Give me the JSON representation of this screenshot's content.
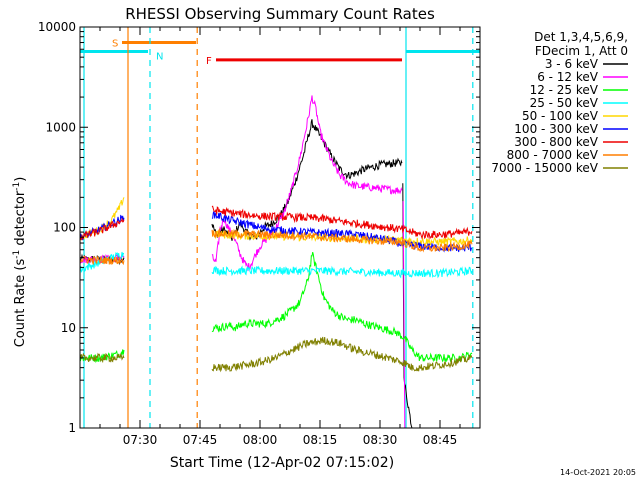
{
  "chart_data": {
    "type": "line",
    "title": "RHESSI Observing Summary Count Rates",
    "xlabel": "Start Time (12-Apr-02 07:15:02)",
    "ylabel_main": "Count Rate (s",
    "ylabel_sup1": "-1",
    "ylabel_mid": " detector",
    "ylabel_sup2": "-1",
    "ylabel_end": ")",
    "yscale": "log",
    "ylim": [
      1,
      10000
    ],
    "xlim": [
      "07:15",
      "08:55"
    ],
    "xlim_minutes": [
      435,
      535
    ],
    "x_ticks": [
      "07:30",
      "07:45",
      "08:00",
      "08:15",
      "08:30",
      "08:45"
    ],
    "x_tick_minutes": [
      450,
      465,
      480,
      495,
      510,
      525
    ],
    "y_ticks": [
      "1",
      "10",
      "100",
      "1000",
      "10000"
    ],
    "y_tick_values": [
      1,
      10,
      100,
      1000,
      10000
    ],
    "legend_header": [
      "Det 1,3,4,5,6,9,",
      "FDecim 1, Att 0"
    ],
    "legend_placement": "right",
    "timestamp": "14-Oct-2021 20:05",
    "flags": [
      {
        "label": "S",
        "color": "#ff7f00",
        "start": 445.5,
        "end": 464.0,
        "value": 7000
      },
      {
        "label": "N",
        "color": "#00e5ee",
        "start": 435.0,
        "end": 452.0,
        "value": 5700
      },
      {
        "label": "N",
        "color": "#00e5ee",
        "start": 516.5,
        "end": 535.0,
        "value": 5700
      },
      {
        "label": "F",
        "color": "#ee0000",
        "start": 469.0,
        "end": 515.5,
        "value": 4700
      }
    ],
    "flag_labels": [
      {
        "text": "S",
        "color": "#ff7f00",
        "x": 443.0,
        "y": 7000
      },
      {
        "text": "N",
        "color": "#00e5ee",
        "x": 454.0,
        "y": 5200
      },
      {
        "text": "F",
        "color": "#ee0000",
        "x": 466.5,
        "y": 4700
      }
    ],
    "vlines": [
      {
        "x": 436.0,
        "color": "#00e5ee",
        "dash": false
      },
      {
        "x": 447.0,
        "color": "#ff7f00",
        "dash": false
      },
      {
        "x": 452.5,
        "color": "#00e5ee",
        "dash": true
      },
      {
        "x": 464.3,
        "color": "#ff7f00",
        "dash": true
      },
      {
        "x": 516.5,
        "color": "#00e5ee",
        "dash": false
      },
      {
        "x": 533.2,
        "color": "#00e5ee",
        "dash": true
      }
    ],
    "series": [
      {
        "name": "3 - 6 keV",
        "color": "#000000",
        "segments": [
          [
            [
              435,
              48
            ],
            [
              440,
              48
            ],
            [
              445,
              48
            ],
            [
              446,
              50
            ]
          ],
          [
            [
              468,
              110
            ],
            [
              469,
              85
            ],
            [
              471,
              95
            ],
            [
              473,
              78
            ],
            [
              475,
              110
            ],
            [
              477,
              85
            ],
            [
              479,
              80
            ],
            [
              481,
              100
            ],
            [
              483,
              110
            ],
            [
              485,
              130
            ],
            [
              487,
              180
            ],
            [
              489,
              300
            ],
            [
              491,
              550
            ],
            [
              492,
              800
            ],
            [
              493,
              1100
            ],
            [
              494,
              950
            ],
            [
              496,
              700
            ],
            [
              498,
              500
            ],
            [
              500,
              380
            ],
            [
              502,
              330
            ],
            [
              504,
              350
            ],
            [
              506,
              380
            ],
            [
              508,
              400
            ],
            [
              510,
              420
            ],
            [
              512,
              430
            ],
            [
              514,
              440
            ],
            [
              515.5,
              440
            ]
          ],
          [
            [
              515.7,
              300
            ],
            [
              516,
              3
            ],
            [
              518,
              1.0
            ]
          ]
        ]
      },
      {
        "name": "6 - 12 keV",
        "color": "#ff00ff",
        "segments": [
          [
            [
              435,
              48
            ],
            [
              440,
              48
            ],
            [
              445,
              50
            ],
            [
              446,
              52
            ]
          ],
          [
            [
              468,
              50
            ],
            [
              469,
              45
            ],
            [
              470,
              95
            ],
            [
              471,
              125
            ],
            [
              472,
              100
            ],
            [
              473,
              85
            ],
            [
              474,
              70
            ],
            [
              475,
              55
            ],
            [
              476,
              45
            ],
            [
              477,
              40
            ],
            [
              478,
              45
            ],
            [
              479,
              55
            ],
            [
              480,
              65
            ],
            [
              482,
              80
            ],
            [
              484,
              100
            ],
            [
              486,
              140
            ],
            [
              488,
              250
            ],
            [
              490,
              500
            ],
            [
              492,
              1200
            ],
            [
              493,
              2000
            ],
            [
              494,
              1500
            ],
            [
              495,
              900
            ],
            [
              496,
              700
            ],
            [
              498,
              450
            ],
            [
              500,
              330
            ],
            [
              502,
              280
            ],
            [
              504,
              260
            ],
            [
              506,
              255
            ],
            [
              508,
              250
            ],
            [
              510,
              245
            ],
            [
              512,
              240
            ],
            [
              514,
              235
            ],
            [
              515.5,
              235
            ]
          ],
          [
            [
              515.8,
              200
            ],
            [
              516.2,
              1.0
            ]
          ]
        ]
      },
      {
        "name": "12 - 25 keV",
        "color": "#00ff00",
        "segments": [
          [
            [
              435,
              5
            ],
            [
              440,
              5
            ],
            [
              445,
              5.5
            ],
            [
              446,
              6
            ]
          ],
          [
            [
              468,
              10
            ],
            [
              470,
              10
            ],
            [
              472,
              10.5
            ],
            [
              474,
              10
            ],
            [
              476,
              11
            ],
            [
              478,
              11
            ],
            [
              480,
              11
            ],
            [
              482,
              11
            ],
            [
              484,
              12
            ],
            [
              486,
              13
            ],
            [
              488,
              15
            ],
            [
              490,
              18
            ],
            [
              492,
              30
            ],
            [
              493,
              55
            ],
            [
              494,
              40
            ],
            [
              495,
              28
            ],
            [
              496,
              20
            ],
            [
              498,
              15
            ],
            [
              500,
              13
            ],
            [
              502,
              12
            ],
            [
              504,
              12
            ],
            [
              506,
              11
            ],
            [
              508,
              10.5
            ],
            [
              510,
              10
            ],
            [
              512,
              9.5
            ],
            [
              514,
              9
            ],
            [
              516,
              8
            ],
            [
              518,
              6
            ],
            [
              520,
              5
            ],
            [
              522,
              5
            ],
            [
              525,
              5
            ],
            [
              528,
              5
            ],
            [
              530,
              5
            ],
            [
              533,
              5.5
            ]
          ]
        ]
      },
      {
        "name": "25 - 50 keV",
        "color": "#00ffff",
        "segments": [
          [
            [
              435,
              38
            ],
            [
              440,
              45
            ],
            [
              443,
              50
            ],
            [
              446,
              55
            ]
          ],
          [
            [
              468,
              38
            ],
            [
              470,
              37
            ],
            [
              473,
              37
            ],
            [
              476,
              37
            ],
            [
              480,
              37
            ],
            [
              485,
              37
            ],
            [
              490,
              37
            ],
            [
              495,
              37
            ],
            [
              500,
              36.5
            ],
            [
              505,
              36
            ],
            [
              510,
              35.5
            ],
            [
              515,
              35
            ],
            [
              520,
              35
            ],
            [
              525,
              35
            ],
            [
              530,
              36
            ],
            [
              533,
              37
            ]
          ]
        ]
      },
      {
        "name": "50 - 100 keV",
        "color": "#ffd700",
        "segments": [
          [
            [
              435,
              80
            ],
            [
              440,
              95
            ],
            [
              443,
              120
            ],
            [
              445,
              160
            ],
            [
              446,
              200
            ]
          ],
          [
            [
              468,
              85
            ],
            [
              470,
              85
            ],
            [
              475,
              83
            ],
            [
              480,
              82
            ],
            [
              485,
              82
            ],
            [
              490,
              80
            ],
            [
              495,
              80
            ],
            [
              500,
              78
            ],
            [
              505,
              77
            ],
            [
              510,
              76
            ],
            [
              515,
              75
            ],
            [
              520,
              73
            ],
            [
              525,
              72
            ],
            [
              530,
              73
            ],
            [
              533,
              75
            ]
          ]
        ]
      },
      {
        "name": "100 - 300 keV",
        "color": "#0000ff",
        "segments": [
          [
            [
              435,
              80
            ],
            [
              440,
              95
            ],
            [
              443,
              110
            ],
            [
              446,
              125
            ]
          ],
          [
            [
              468,
              135
            ],
            [
              470,
              130
            ],
            [
              472,
              120
            ],
            [
              474,
              115
            ],
            [
              476,
              110
            ],
            [
              478,
              105
            ],
            [
              480,
              100
            ],
            [
              484,
              95
            ],
            [
              488,
              92
            ],
            [
              492,
              90
            ],
            [
              496,
              88
            ],
            [
              500,
              87
            ],
            [
              504,
              85
            ],
            [
              508,
              80
            ],
            [
              512,
              75
            ],
            [
              516,
              68
            ],
            [
              520,
              65
            ],
            [
              525,
              63
            ],
            [
              530,
              62
            ],
            [
              533,
              63
            ]
          ]
        ]
      },
      {
        "name": "300 - 800 keV",
        "color": "#ee0000",
        "segments": [
          [
            [
              435,
              80
            ],
            [
              440,
              92
            ],
            [
              443,
              105
            ],
            [
              446,
              120
            ]
          ],
          [
            [
              468,
              150
            ],
            [
              470,
              145
            ],
            [
              473,
              140
            ],
            [
              476,
              135
            ],
            [
              480,
              130
            ],
            [
              484,
              128
            ],
            [
              488,
              127
            ],
            [
              492,
              125
            ],
            [
              496,
              122
            ],
            [
              500,
              115
            ],
            [
              504,
              110
            ],
            [
              508,
              105
            ],
            [
              512,
              100
            ],
            [
              516,
              95
            ],
            [
              520,
              85
            ],
            [
              525,
              85
            ],
            [
              530,
              88
            ],
            [
              533,
              92
            ]
          ]
        ]
      },
      {
        "name": "800 - 7000 keV",
        "color": "#ff7f00",
        "segments": [
          [
            [
              435,
              48
            ],
            [
              440,
              47
            ],
            [
              445,
              47
            ],
            [
              446,
              47
            ]
          ],
          [
            [
              468,
              88
            ],
            [
              470,
              87
            ],
            [
              475,
              86
            ],
            [
              480,
              85
            ],
            [
              485,
              84
            ],
            [
              490,
              83
            ],
            [
              495,
              80
            ],
            [
              500,
              78
            ],
            [
              505,
              76
            ],
            [
              510,
              73
            ],
            [
              515,
              72
            ],
            [
              520,
              62
            ],
            [
              525,
              62
            ],
            [
              530,
              65
            ],
            [
              533,
              68
            ]
          ]
        ]
      },
      {
        "name": "7000 - 15000 keV",
        "color": "#808000",
        "segments": [
          [
            [
              435,
              5
            ],
            [
              440,
              5
            ],
            [
              445,
              5
            ],
            [
              446,
              5
            ]
          ],
          [
            [
              468,
              4
            ],
            [
              472,
              4
            ],
            [
              476,
              4.2
            ],
            [
              480,
              4.5
            ],
            [
              484,
              5
            ],
            [
              488,
              6
            ],
            [
              492,
              7
            ],
            [
              496,
              7.5
            ],
            [
              500,
              7
            ],
            [
              504,
              6
            ],
            [
              508,
              5.5
            ],
            [
              512,
              5
            ],
            [
              516,
              4.5
            ],
            [
              518,
              4
            ],
            [
              520,
              4
            ],
            [
              524,
              4.2
            ],
            [
              528,
              4.5
            ],
            [
              533,
              5
            ]
          ]
        ]
      }
    ]
  }
}
